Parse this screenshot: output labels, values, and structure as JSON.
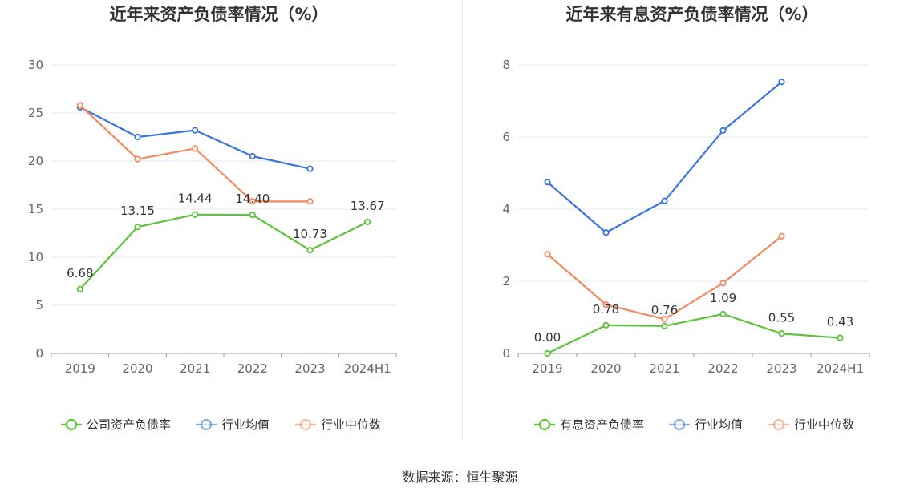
{
  "source": "数据来源：恒生聚源",
  "colors": {
    "company": "#5cc23b",
    "industry_avg": "#3b74e0",
    "industry_median": "#f5895f",
    "grid": "#e6e9f2",
    "axis": "#999999"
  },
  "chart_data": [
    {
      "type": "line",
      "title": "近年来资产负债率情况（%）",
      "categories": [
        "2019",
        "2020",
        "2021",
        "2022",
        "2023",
        "2024H1"
      ],
      "ylim": [
        0,
        30
      ],
      "yticks": [
        0,
        5,
        10,
        15,
        20,
        25,
        30
      ],
      "series": [
        {
          "name": "公司资产负债率",
          "color": "#5cc23b",
          "values": [
            6.68,
            13.15,
            14.44,
            14.4,
            10.73,
            13.67
          ],
          "labels": [
            "6.68",
            "13.15",
            "14.44",
            "14.40",
            "10.73",
            "13.67"
          ]
        },
        {
          "name": "行业均值",
          "color": "#3b74e0",
          "values": [
            25.6,
            22.5,
            23.2,
            20.5,
            19.2,
            null
          ],
          "labels": null
        },
        {
          "name": "行业中位数",
          "color": "#f5895f",
          "values": [
            25.8,
            20.2,
            21.3,
            15.8,
            15.8,
            null
          ],
          "labels": null
        }
      ]
    },
    {
      "type": "line",
      "title": "近年来有息资产负债率情况（%）",
      "categories": [
        "2019",
        "2020",
        "2021",
        "2022",
        "2023",
        "2024H1"
      ],
      "ylim": [
        0,
        8
      ],
      "yticks": [
        0,
        2,
        4,
        6,
        8
      ],
      "series": [
        {
          "name": "有息资产负债率",
          "color": "#5cc23b",
          "values": [
            0.0,
            0.78,
            0.76,
            1.09,
            0.55,
            0.43
          ],
          "labels": [
            "0.00",
            "0.78",
            "0.76",
            "1.09",
            "0.55",
            "0.43"
          ]
        },
        {
          "name": "行业均值",
          "color": "#3b74e0",
          "values": [
            4.75,
            3.35,
            4.23,
            6.18,
            7.53,
            null
          ],
          "labels": null
        },
        {
          "name": "行业中位数",
          "color": "#f5895f",
          "values": [
            2.75,
            1.35,
            0.95,
            1.95,
            3.25,
            null
          ],
          "labels": null
        }
      ]
    }
  ]
}
